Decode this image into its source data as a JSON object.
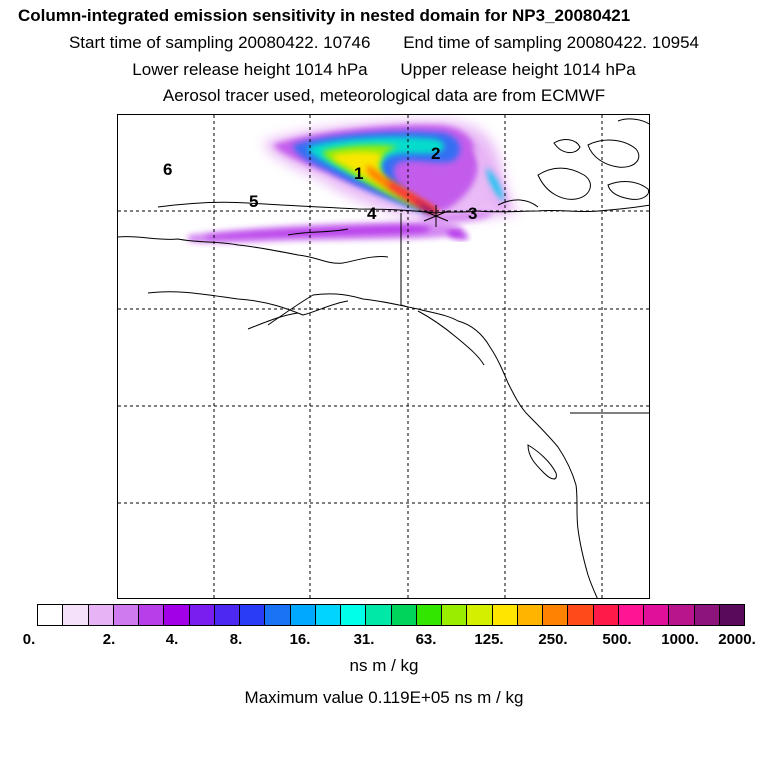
{
  "header": {
    "title": "Column-integrated emission sensitivity in nested domain for NP3_20080421",
    "start_time": "Start time of sampling 20080422. 10746",
    "end_time": "End time of sampling 20080422. 10954",
    "lower_height": "Lower release height 1014 hPa",
    "upper_height": "Upper release height 1014 hPa",
    "tracer_note": "Aerosol tracer used, meteorological data are from ECMWF"
  },
  "map": {
    "markers": [
      "1",
      "2",
      "3",
      "4",
      "5",
      "6"
    ]
  },
  "colorbar": {
    "colors": [
      "#ffffff",
      "#f6e1fb",
      "#e7b3f5",
      "#d07af0",
      "#b73ee8",
      "#a200e6",
      "#7a1ef0",
      "#4d28f0",
      "#2a3cf5",
      "#1a72f5",
      "#00a8ff",
      "#00d4ff",
      "#00ffe8",
      "#00e8a8",
      "#00d45a",
      "#33e600",
      "#99ee00",
      "#d4f000",
      "#ffe600",
      "#ffb400",
      "#ff8200",
      "#ff4a1a",
      "#ff1a4a",
      "#ff1493",
      "#e0109a",
      "#b8148c",
      "#8c147a",
      "#5a0a5a"
    ],
    "tick_labels": [
      "0.",
      "2.",
      "4.",
      "8.",
      "16.",
      "31.",
      "63.",
      "125.",
      "250.",
      "500.",
      "1000.",
      "2000."
    ],
    "unit": "ns m / kg",
    "max_value_text": "Maximum value  0.119E+05 ns m / kg"
  }
}
